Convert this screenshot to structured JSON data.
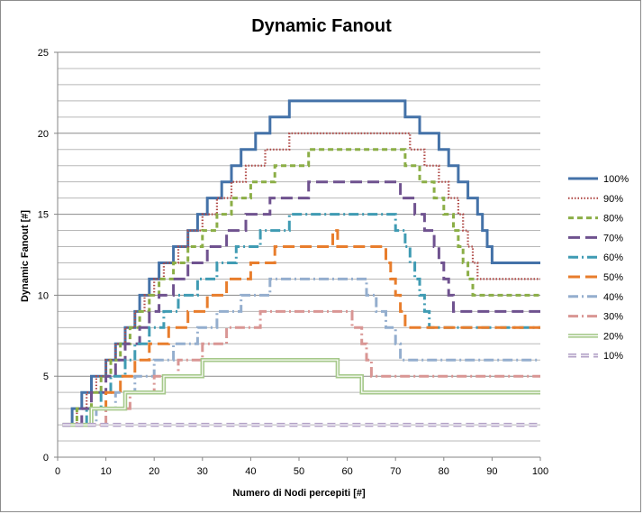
{
  "chart_data": {
    "type": "line",
    "title": "Dynamic Fanout",
    "xlabel": "Numero di Nodi percepiti [#]",
    "ylabel": "Dynamic Fanout [#]",
    "xlim": [
      0,
      100
    ],
    "ylim": [
      0,
      25
    ],
    "x_ticks": [
      "0",
      "10",
      "20",
      "30",
      "40",
      "50",
      "60",
      "70",
      "80",
      "90",
      "100"
    ],
    "y_ticks": [
      "0",
      "5",
      "10",
      "15",
      "20",
      "25"
    ],
    "grid": true,
    "legend_position": "right",
    "series": [
      {
        "name": "100%",
        "color": "#4472a8",
        "style": "solid",
        "points": [
          [
            1,
            2
          ],
          [
            2,
            2
          ],
          [
            3,
            3
          ],
          [
            5,
            4
          ],
          [
            7,
            5
          ],
          [
            10,
            6
          ],
          [
            12,
            7
          ],
          [
            14,
            8
          ],
          [
            16,
            9
          ],
          [
            17,
            10
          ],
          [
            19,
            11
          ],
          [
            21,
            12
          ],
          [
            24,
            13
          ],
          [
            27,
            14
          ],
          [
            29,
            15
          ],
          [
            31,
            16
          ],
          [
            34,
            17
          ],
          [
            36,
            18
          ],
          [
            38,
            19
          ],
          [
            41,
            20
          ],
          [
            44,
            21
          ],
          [
            48,
            22
          ],
          [
            65,
            22
          ],
          [
            72,
            21
          ],
          [
            75,
            20
          ],
          [
            79,
            19
          ],
          [
            81,
            18
          ],
          [
            83,
            17
          ],
          [
            85,
            16
          ],
          [
            87,
            15
          ],
          [
            88,
            14
          ],
          [
            89,
            13
          ],
          [
            90,
            12
          ],
          [
            100,
            12
          ]
        ]
      },
      {
        "name": "90%",
        "color": "#b04a47",
        "style": "dotted",
        "points": [
          [
            1,
            2
          ],
          [
            2,
            2
          ],
          [
            4,
            3
          ],
          [
            6,
            4
          ],
          [
            8,
            5
          ],
          [
            10,
            6
          ],
          [
            12,
            7
          ],
          [
            14,
            8
          ],
          [
            16,
            9
          ],
          [
            18,
            10
          ],
          [
            20,
            11
          ],
          [
            22,
            12
          ],
          [
            25,
            13
          ],
          [
            27,
            14
          ],
          [
            30,
            15
          ],
          [
            33,
            16
          ],
          [
            36,
            17
          ],
          [
            39,
            18
          ],
          [
            43,
            19
          ],
          [
            48,
            20
          ],
          [
            68,
            20
          ],
          [
            73,
            19
          ],
          [
            76,
            18
          ],
          [
            79,
            17
          ],
          [
            81,
            16
          ],
          [
            83,
            15
          ],
          [
            84,
            14
          ],
          [
            85,
            13
          ],
          [
            86,
            12
          ],
          [
            87,
            11
          ],
          [
            100,
            11
          ]
        ]
      },
      {
        "name": "80%",
        "color": "#8bae46",
        "style": "dashed",
        "points": [
          [
            1,
            2
          ],
          [
            3,
            2
          ],
          [
            4,
            3
          ],
          [
            7,
            4
          ],
          [
            9,
            5
          ],
          [
            11,
            6
          ],
          [
            13,
            7
          ],
          [
            15,
            8
          ],
          [
            17,
            9
          ],
          [
            19,
            10
          ],
          [
            21,
            11
          ],
          [
            24,
            12
          ],
          [
            27,
            13
          ],
          [
            30,
            14
          ],
          [
            33,
            15
          ],
          [
            36,
            16
          ],
          [
            40,
            17
          ],
          [
            45,
            18
          ],
          [
            52,
            19
          ],
          [
            66,
            19
          ],
          [
            72,
            18
          ],
          [
            75,
            17
          ],
          [
            78,
            16
          ],
          [
            80,
            15
          ],
          [
            82,
            14
          ],
          [
            83,
            13
          ],
          [
            84,
            12
          ],
          [
            85,
            11
          ],
          [
            86,
            10
          ],
          [
            100,
            10
          ]
        ]
      },
      {
        "name": "70%",
        "color": "#6f528f",
        "style": "longdash",
        "points": [
          [
            1,
            2
          ],
          [
            3,
            2
          ],
          [
            5,
            3
          ],
          [
            7,
            4
          ],
          [
            10,
            5
          ],
          [
            12,
            6
          ],
          [
            14,
            7
          ],
          [
            17,
            8
          ],
          [
            19,
            9
          ],
          [
            21,
            10
          ],
          [
            24,
            11
          ],
          [
            27,
            12
          ],
          [
            31,
            13
          ],
          [
            35,
            14
          ],
          [
            39,
            15
          ],
          [
            44,
            16
          ],
          [
            52,
            17
          ],
          [
            66,
            17
          ],
          [
            71,
            16
          ],
          [
            74,
            15
          ],
          [
            76,
            14
          ],
          [
            78,
            13
          ],
          [
            79,
            12
          ],
          [
            80,
            11
          ],
          [
            81,
            10
          ],
          [
            82,
            9
          ],
          [
            100,
            9
          ]
        ]
      },
      {
        "name": "60%",
        "color": "#3f9bb3",
        "style": "dashdot",
        "points": [
          [
            2,
            2
          ],
          [
            4,
            2
          ],
          [
            6,
            3
          ],
          [
            9,
            4
          ],
          [
            11,
            5
          ],
          [
            14,
            6
          ],
          [
            16,
            7
          ],
          [
            19,
            8
          ],
          [
            22,
            9
          ],
          [
            25,
            10
          ],
          [
            29,
            11
          ],
          [
            33,
            12
          ],
          [
            37,
            13
          ],
          [
            42,
            14
          ],
          [
            48,
            15
          ],
          [
            66,
            15
          ],
          [
            70,
            14
          ],
          [
            72,
            13
          ],
          [
            73,
            12
          ],
          [
            74,
            11
          ],
          [
            75,
            10
          ],
          [
            76,
            9
          ],
          [
            77,
            8
          ],
          [
            100,
            8
          ]
        ]
      },
      {
        "name": "50%",
        "color": "#e87d2c",
        "style": "longdash",
        "points": [
          [
            2,
            2
          ],
          [
            5,
            2
          ],
          [
            7,
            3
          ],
          [
            10,
            4
          ],
          [
            13,
            5
          ],
          [
            16,
            6
          ],
          [
            19,
            7
          ],
          [
            23,
            8
          ],
          [
            27,
            9
          ],
          [
            31,
            10
          ],
          [
            35,
            11
          ],
          [
            40,
            12
          ],
          [
            45,
            13
          ],
          [
            56,
            13
          ],
          [
            57,
            14
          ],
          [
            58,
            13
          ],
          [
            66,
            13
          ],
          [
            68,
            12
          ],
          [
            69,
            11
          ],
          [
            70,
            10
          ],
          [
            71,
            9
          ],
          [
            72,
            8
          ],
          [
            100,
            8
          ]
        ]
      },
      {
        "name": "40%",
        "color": "#94aece",
        "style": "dashdot",
        "points": [
          [
            2,
            2
          ],
          [
            5,
            2
          ],
          [
            8,
            3
          ],
          [
            12,
            4
          ],
          [
            16,
            5
          ],
          [
            20,
            6
          ],
          [
            24,
            7
          ],
          [
            29,
            8
          ],
          [
            33,
            9
          ],
          [
            38,
            10
          ],
          [
            44,
            11
          ],
          [
            61,
            11
          ],
          [
            64,
            10
          ],
          [
            66,
            9
          ],
          [
            68,
            8
          ],
          [
            70,
            7
          ],
          [
            71,
            6
          ],
          [
            100,
            6
          ]
        ]
      },
      {
        "name": "30%",
        "color": "#d99694",
        "style": "dashdot",
        "points": [
          [
            2,
            2
          ],
          [
            6,
            2
          ],
          [
            10,
            3
          ],
          [
            15,
            4
          ],
          [
            20,
            5
          ],
          [
            25,
            6
          ],
          [
            30,
            7
          ],
          [
            35,
            8
          ],
          [
            42,
            9
          ],
          [
            59,
            9
          ],
          [
            61,
            8
          ],
          [
            63,
            7
          ],
          [
            64,
            6
          ],
          [
            65,
            5
          ],
          [
            100,
            5
          ]
        ]
      },
      {
        "name": "20%",
        "color": "#a6c98b",
        "style": "double",
        "points": [
          [
            1,
            2
          ],
          [
            6,
            2
          ],
          [
            7,
            3
          ],
          [
            13,
            3
          ],
          [
            14,
            4
          ],
          [
            21,
            4
          ],
          [
            22,
            5
          ],
          [
            29,
            5
          ],
          [
            30,
            6
          ],
          [
            57,
            6
          ],
          [
            58,
            5
          ],
          [
            62,
            5
          ],
          [
            63,
            4
          ],
          [
            100,
            4
          ]
        ]
      },
      {
        "name": "10%",
        "color": "#b3a2c7",
        "style": "dashed-double",
        "points": [
          [
            1,
            2
          ],
          [
            100,
            2
          ]
        ]
      }
    ]
  }
}
